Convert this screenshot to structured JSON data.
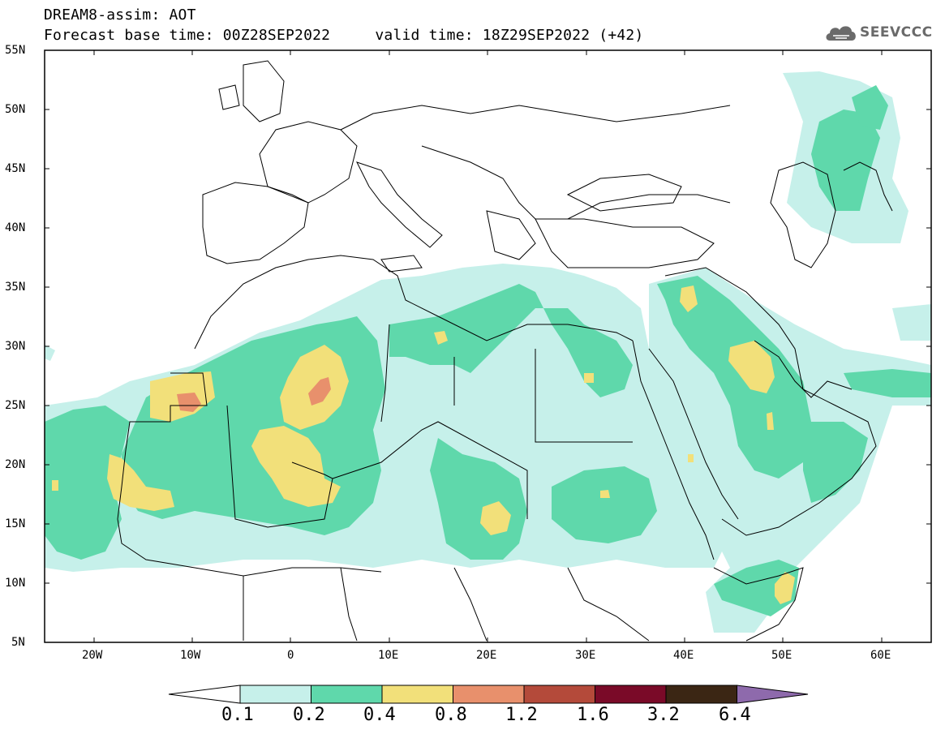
{
  "header": {
    "title": "DREAM8-assim: AOT",
    "subtitle": "Forecast base time: 00Z28SEP2022     valid time: 18Z29SEP2022 (+42)"
  },
  "logo": {
    "text": "SEEVCCC",
    "icon": "cloud-icon"
  },
  "map_data": {
    "type": "contour-map",
    "variable": "AOT",
    "lon_range": [
      -25,
      65
    ],
    "lat_range": [
      5,
      55
    ],
    "lat_ticks": [
      "55N",
      "50N",
      "45N",
      "40N",
      "35N",
      "30N",
      "25N",
      "20N",
      "15N",
      "10N",
      "5N"
    ],
    "lon_ticks": [
      "20W",
      "10W",
      "0",
      "10E",
      "20E",
      "30E",
      "40E",
      "50E",
      "60E"
    ],
    "levels": [
      "0.1",
      "0.2",
      "0.4",
      "0.8",
      "1.2",
      "1.6",
      "3.2",
      "6.4"
    ],
    "colors": {
      "c01": "#c6f0ea",
      "c02": "#5fd8ab",
      "c04": "#f2e07a",
      "c08": "#e8906c",
      "c12": "#b44a3a",
      "c16": "#7a0a28",
      "c32": "#3b2614",
      "c64": "#8e6aac"
    }
  }
}
